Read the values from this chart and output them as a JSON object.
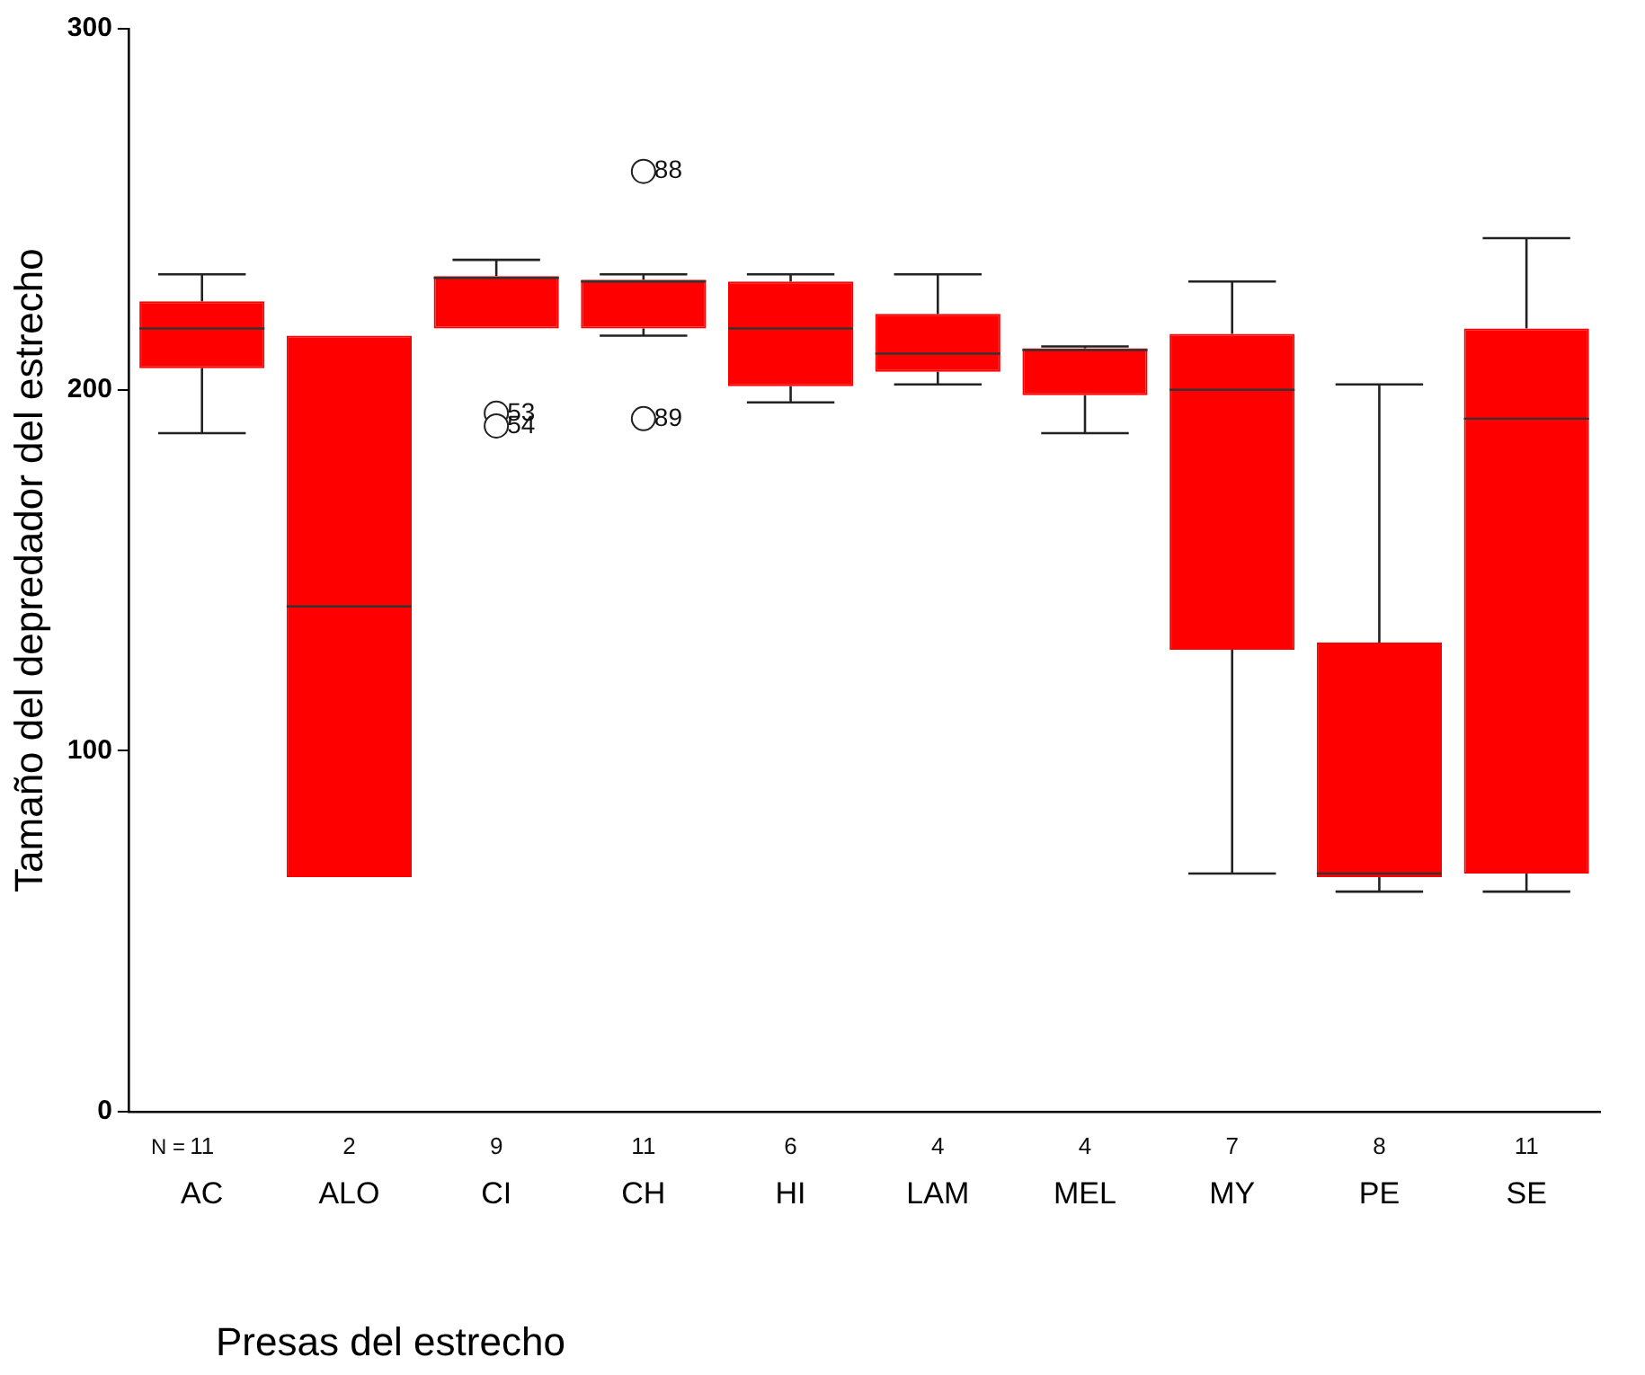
{
  "chart_data": {
    "type": "box",
    "xlabel": "Presas del estrecho",
    "ylabel": "Tamaño del depredador del estrecho",
    "categories": [
      "AC",
      "ALO",
      "CI",
      "CH",
      "HI",
      "LAM",
      "MEL",
      "MY",
      "PE",
      "SE"
    ],
    "color": "#ff0000",
    "boxes": [
      {
        "low": 188,
        "q1": 206,
        "median": 217,
        "q3": 224.5,
        "high": 232
      },
      {
        "low": 65,
        "q1": 65,
        "median": 140,
        "q3": 215,
        "high": 215
      },
      {
        "low": 217,
        "q1": 217,
        "median": 231,
        "q3": 231.5,
        "high": 236,
        "outliers": [
          193.5,
          190
        ]
      },
      {
        "low": 215,
        "q1": 217,
        "median": 230,
        "q3": 230.5,
        "high": 232,
        "outliers": [
          260.5,
          192
        ]
      },
      {
        "low": 196.5,
        "q1": 201,
        "median": 217,
        "q3": 230,
        "high": 232
      },
      {
        "low": 201.5,
        "q1": 205,
        "median": 210,
        "q3": 221,
        "high": 232
      },
      {
        "low": 188,
        "q1": 198.5,
        "median": 211,
        "q3": 211.5,
        "high": 212
      },
      {
        "low": 66,
        "q1": 128,
        "median": 200,
        "q3": 215.5,
        "high": 230
      },
      {
        "low": 61,
        "q1": 65,
        "median": 66,
        "q3": 130,
        "high": 201.5
      },
      {
        "low": 61,
        "q1": 66,
        "median": 192,
        "q3": 217,
        "high": 242
      }
    ],
    "ylim": [
      0,
      300
    ],
    "yticks": [
      0,
      100,
      200,
      300
    ],
    "grid": false,
    "legend": false,
    "annotations": [
      "N =",
      "11",
      "2",
      "9",
      "11",
      "6",
      "4",
      "4",
      "7",
      "8",
      "11",
      "53",
      "54",
      "88",
      "89"
    ]
  }
}
